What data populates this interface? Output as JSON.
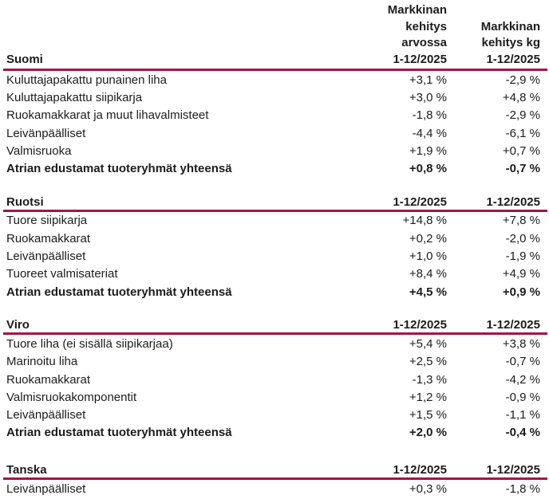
{
  "colors": {
    "accent": "#a11648",
    "text": "#1c1c1c"
  },
  "header": {
    "value_col_lines": [
      "Markkinan",
      "kehitys",
      "arvossa",
      "1-12/2025"
    ],
    "kg_col_lines": [
      "Markkinan",
      "kehitys kg",
      "1-12/2025"
    ]
  },
  "sections": [
    {
      "name": "Suomi",
      "period": "1-12/2025",
      "rows": [
        {
          "label": "Kuluttajapakattu punainen liha",
          "value": "+3,1 %",
          "kg": "-2,9 %"
        },
        {
          "label": "Kuluttajapakattu siipikarja",
          "value": "+3,0 %",
          "kg": "+4,8 %"
        },
        {
          "label": "Ruokamakkarat ja muut lihavalmisteet",
          "value": "-1,8 %",
          "kg": "-2,9 %"
        },
        {
          "label": "Leivänpäälliset",
          "value": "-4,4 %",
          "kg": "-6,1 %"
        },
        {
          "label": "Valmisruoka",
          "value": "+1,9 %",
          "kg": "+0,7 %"
        },
        {
          "label": "Atrian edustamat tuoteryhmät yhteensä",
          "value": "+0,8 %",
          "kg": "-0,7 %"
        }
      ]
    },
    {
      "name": "Ruotsi",
      "period": "1-12/2025",
      "rows": [
        {
          "label": "Tuore siipikarja",
          "value": "+14,8 %",
          "kg": "+7,8 %"
        },
        {
          "label": "Ruokamakkarat",
          "value": "+0,2 %",
          "kg": "-2,0 %"
        },
        {
          "label": "Leivänpäälliset",
          "value": "+1,0 %",
          "kg": "-1,9 %"
        },
        {
          "label": "Tuoreet valmisateriat",
          "value": "+8,4 %",
          "kg": "+4,9 %"
        },
        {
          "label": "Atrian edustamat tuoteryhmät yhteensä",
          "value": "+4,5 %",
          "kg": "+0,9 %"
        }
      ]
    },
    {
      "name": "Viro",
      "period": "1-12/2025",
      "rows": [
        {
          "label": "Tuore liha (ei sisällä siipikarjaa)",
          "value": "+5,4 %",
          "kg": "+3,8 %"
        },
        {
          "label": "Marinoitu liha",
          "value": "+2,5 %",
          "kg": "-0,7 %"
        },
        {
          "label": "Ruokamakkarat",
          "value": "-1,3 %",
          "kg": "-4,2 %"
        },
        {
          "label": "Valmisruokakomponentit",
          "value": "+1,2 %",
          "kg": "-0,9 %"
        },
        {
          "label": "Leivänpäälliset",
          "value": "+1,5 %",
          "kg": "-1,1 %"
        },
        {
          "label": "Atrian edustamat tuoteryhmät yhteensä",
          "value": "+2,0 %",
          "kg": "-0,4 %"
        }
      ]
    },
    {
      "name": "Tanska",
      "period": "1-12/2025",
      "rows": [
        {
          "label": "Leivänpäälliset",
          "value": "+0,3 %",
          "kg": "-1,8 %"
        }
      ]
    }
  ]
}
